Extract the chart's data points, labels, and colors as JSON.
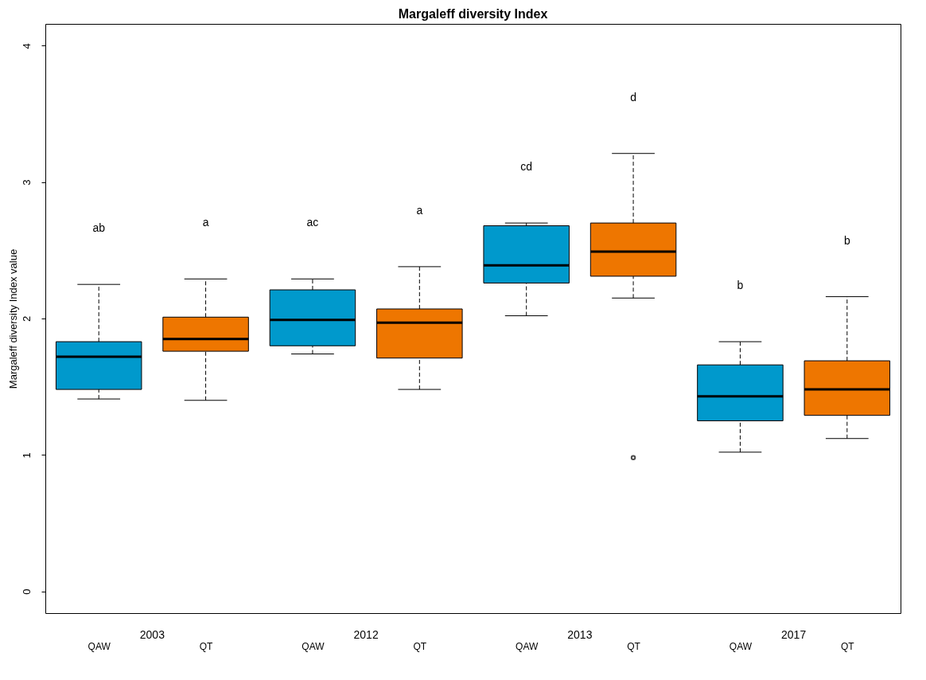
{
  "chart_data": {
    "type": "box",
    "title": "Margaleff diversity Index",
    "ylabel": "Margaleff diversity Index value",
    "categories": [
      "QAW",
      "QT",
      "QAW",
      "QT",
      "QAW",
      "QT",
      "QAW",
      "QT"
    ],
    "colors": [
      "#0099cc",
      "#ee7600",
      "#0099cc",
      "#ee7600",
      "#0099cc",
      "#ee7600",
      "#0099cc",
      "#ee7600"
    ],
    "boxes": [
      {
        "low": 1.41,
        "q1": 1.48,
        "median": 1.72,
        "q3": 1.83,
        "high": 2.25
      },
      {
        "low": 1.4,
        "q1": 1.76,
        "median": 1.85,
        "q3": 2.01,
        "high": 2.29
      },
      {
        "low": 1.74,
        "q1": 1.8,
        "median": 1.99,
        "q3": 2.21,
        "high": 2.29
      },
      {
        "low": 1.48,
        "q1": 1.71,
        "median": 1.97,
        "q3": 2.07,
        "high": 2.38
      },
      {
        "low": 2.02,
        "q1": 2.26,
        "median": 2.39,
        "q3": 2.68,
        "high": 2.7
      },
      {
        "low": 2.15,
        "q1": 2.31,
        "median": 2.49,
        "q3": 2.7,
        "high": 3.21,
        "outliers": [
          0.98
        ]
      },
      {
        "low": 1.02,
        "q1": 1.25,
        "median": 1.43,
        "q3": 1.66,
        "high": 1.83
      },
      {
        "low": 1.12,
        "q1": 1.29,
        "median": 1.48,
        "q3": 1.69,
        "high": 2.16
      }
    ],
    "ylim": [
      -0.16,
      4.16
    ],
    "yticks": [
      0,
      1,
      2,
      3,
      4
    ],
    "grid": false,
    "annotations": [
      "ab",
      "a",
      "ac",
      "a",
      "cd",
      "d",
      "b",
      "b",
      "2003",
      "2012",
      "2013",
      "2017"
    ]
  }
}
